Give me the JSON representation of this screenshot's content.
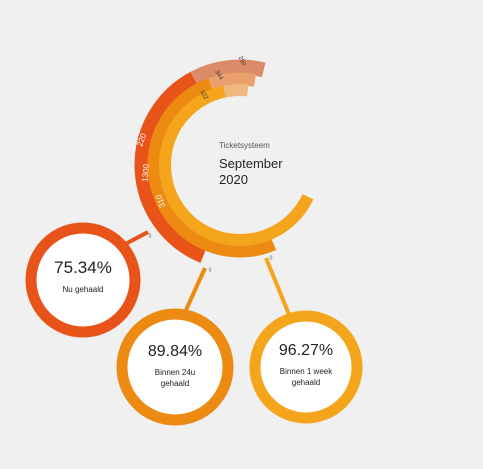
{
  "header": {
    "caption": "Ticketsysteem",
    "month": "September",
    "year": "2020"
  },
  "colors": {
    "red": "#e8531a",
    "orange": "#ec8a12",
    "yellow": "#f5a51c",
    "peach_light": "#f0b87e",
    "peach_mid": "#e9a06c",
    "peach_dark": "#dc8b68",
    "background": "#f0f0f0"
  },
  "chart_data": {
    "type": "radial-bar",
    "title": "",
    "series": [
      {
        "name": "Nu gehaald",
        "achieved": 220,
        "remaining": 1300,
        "remaining_label": "1300",
        "achieved_label": "220",
        "end_label": "292",
        "percent": "75.34%",
        "color": "red"
      },
      {
        "name": "Binnen 24u gehaald",
        "achieved": 310,
        "remaining": 1300,
        "remaining_label": "",
        "achieved_label": "",
        "end_label": "344",
        "percent": "89.84%",
        "color": "orange"
      },
      {
        "name": "Binnen 1 week gehaald",
        "achieved": 322,
        "remaining": 1300,
        "remaining_label": "310",
        "achieved_label": "",
        "end_label": "322",
        "percent": "96.27%",
        "color": "yellow"
      }
    ],
    "axis_zero_labels": [
      "0",
      "0",
      "0"
    ]
  },
  "kpis": [
    {
      "value": "75.34%",
      "label_lines": [
        "Nu gehaald"
      ]
    },
    {
      "value": "89.84%",
      "label_lines": [
        "Binnen 24u",
        "gehaald"
      ]
    },
    {
      "value": "96.27%",
      "label_lines": [
        "Binnen 1 week",
        "gehaald"
      ]
    }
  ]
}
